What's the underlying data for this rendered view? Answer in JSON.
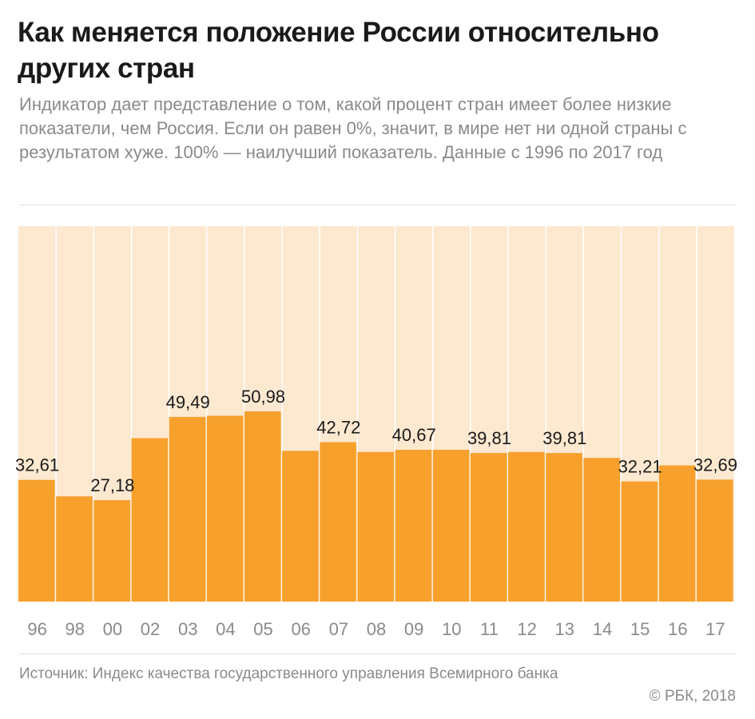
{
  "header": {
    "title": "Как меняется положение России относительно других стран",
    "subtitle": "Индикатор дает представление о том, какой процент стран имеет более низкие показатели, чем Россия. Если он равен 0%, значит, в мире нет ни одной страны с результатом хуже. 100% — наилучший показатель. Данные с 1996 по 2017 год"
  },
  "footer": {
    "source": "Источник: Индекс качества государственного управления Всемирного банка",
    "copyright": "© РБК, 2018"
  },
  "colors": {
    "bar": "#f7a02c",
    "background": "#fde8d0",
    "gridline": "#ffffff",
    "label": "#1a1a1a",
    "tick": "#8a8a8a"
  },
  "chart_data": {
    "type": "bar",
    "categories": [
      "96",
      "98",
      "00",
      "02",
      "03",
      "04",
      "05",
      "06",
      "07",
      "08",
      "09",
      "10",
      "11",
      "12",
      "13",
      "14",
      "15",
      "16",
      "17"
    ],
    "values": [
      32.61,
      28.2,
      27.18,
      43.8,
      49.49,
      49.8,
      50.98,
      40.4,
      42.72,
      40.1,
      40.67,
      40.67,
      39.81,
      40.1,
      39.81,
      38.5,
      32.21,
      36.5,
      32.69
    ],
    "data_labels": [
      "32,61",
      "",
      "27,18",
      "",
      "49,49",
      "",
      "50,98",
      "",
      "42,72",
      "",
      "40,67",
      "",
      "39,81",
      "",
      "39,81",
      "",
      "32,21",
      "",
      "32,69"
    ],
    "ylim": [
      0,
      100
    ],
    "grid": true
  }
}
